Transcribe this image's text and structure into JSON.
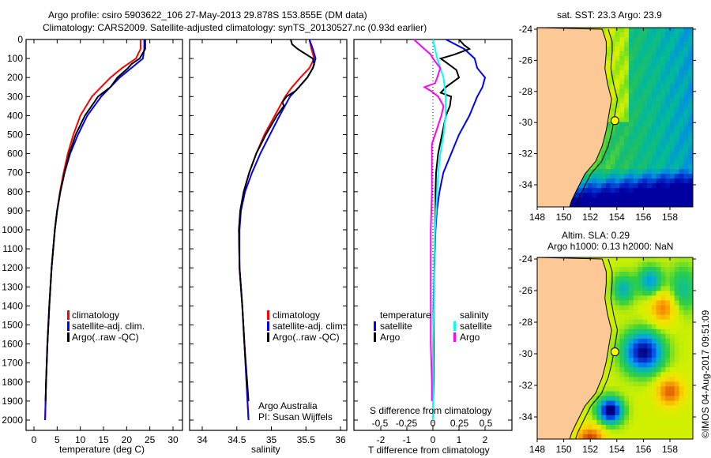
{
  "title": {
    "line1": "Argo profile: csiro 5903622_106 27-May-2013 29.878S 153.855E (DM data)",
    "line2": "Climatology: CARS2009. Satellite-adjusted climatology: synTS_20130527.nc (0.93d earlier)"
  },
  "colors": {
    "climatology": "#ff0000",
    "satellite": "#0000ff",
    "argo": "#000000",
    "sal_satellite": "#00ffff",
    "sal_argo": "#ff00ff",
    "land": "#fbc896"
  },
  "chart_data": [
    {
      "type": "line",
      "panel": "temperature",
      "xlabel": "temperature (deg C)",
      "ylabel": "",
      "xlim": [
        -1.7,
        32
      ],
      "ylim": [
        2050,
        0
      ],
      "xticks": [
        0,
        5,
        10,
        15,
        20,
        25,
        30
      ],
      "yticks": [
        0,
        100,
        200,
        300,
        400,
        500,
        600,
        700,
        800,
        900,
        1000,
        1100,
        1200,
        1300,
        1400,
        1500,
        1600,
        1700,
        1800,
        1900,
        2000
      ],
      "legend": [
        "climatology",
        "satellite-adj. clim.",
        "Argo(..raw -QC)"
      ],
      "legend_placement": "lower-middle",
      "series": [
        {
          "name": "climatology",
          "color": "#ff0000",
          "depth": [
            0,
            50,
            100,
            150,
            200,
            300,
            400,
            500,
            600,
            700,
            800,
            900,
            1000,
            1200,
            1400,
            1600,
            1800,
            2000
          ],
          "values": [
            23.0,
            23.0,
            22.0,
            19.0,
            16.5,
            12.5,
            10.0,
            8.5,
            7.3,
            6.4,
            5.6,
            5.0,
            4.5,
            3.8,
            3.3,
            2.9,
            2.6,
            2.4
          ]
        },
        {
          "name": "satellite-adj. clim.",
          "color": "#0000ff",
          "depth": [
            0,
            50,
            100,
            150,
            200,
            300,
            400,
            500,
            600,
            700,
            800,
            900,
            1000,
            1200,
            1400,
            1600,
            1800,
            2000
          ],
          "values": [
            23.8,
            23.8,
            23.5,
            21.0,
            18.5,
            14.5,
            11.5,
            9.5,
            7.8,
            6.6,
            5.7,
            5.0,
            4.5,
            3.8,
            3.3,
            2.9,
            2.6,
            2.4
          ]
        },
        {
          "name": "Argo",
          "color": "#000000",
          "depth": [
            0,
            50,
            100,
            130,
            150,
            200,
            250,
            300,
            330,
            400,
            500,
            600,
            700,
            800,
            900,
            1000,
            1200,
            1400,
            1600,
            1800,
            1900
          ],
          "values": [
            24.0,
            24.0,
            22.8,
            21.0,
            20.3,
            18.0,
            16.5,
            13.8,
            13.0,
            11.0,
            9.0,
            7.6,
            6.6,
            5.7,
            5.0,
            4.5,
            3.8,
            3.3,
            2.9,
            2.6,
            2.5
          ]
        }
      ]
    },
    {
      "type": "line",
      "panel": "salinity",
      "xlabel": "salinity",
      "xlim": [
        33.8,
        36.1
      ],
      "ylim": [
        2050,
        0
      ],
      "xticks": [
        34,
        34.5,
        35,
        35.5,
        36
      ],
      "legend": [
        "climatology",
        "satellite-adj. clim.",
        "Argo(..raw -QC)"
      ],
      "legend_placement": "lower-right",
      "annotation": [
        "Argo Australia",
        "PI: Susan Wijffels"
      ],
      "series": [
        {
          "name": "climatology",
          "color": "#ff0000",
          "depth": [
            0,
            50,
            100,
            150,
            200,
            250,
            300,
            400,
            500,
            600,
            700,
            800,
            900,
            1000,
            1200,
            1400,
            1600,
            1800,
            2000
          ],
          "values": [
            35.55,
            35.58,
            35.62,
            35.55,
            35.42,
            35.3,
            35.2,
            35.05,
            34.9,
            34.78,
            34.68,
            34.6,
            34.55,
            34.53,
            34.54,
            34.58,
            34.61,
            34.64,
            34.67
          ]
        },
        {
          "name": "satellite-adj. clim.",
          "color": "#0000ff",
          "depth": [
            0,
            50,
            100,
            150,
            200,
            250,
            300,
            400,
            500,
            600,
            700,
            800,
            900,
            1000,
            1200,
            1400,
            1600,
            1800,
            2000
          ],
          "values": [
            35.55,
            35.6,
            35.64,
            35.6,
            35.52,
            35.4,
            35.27,
            35.12,
            34.98,
            34.84,
            34.72,
            34.62,
            34.56,
            34.54,
            34.54,
            34.58,
            34.61,
            34.64,
            34.67
          ]
        },
        {
          "name": "Argo",
          "color": "#000000",
          "depth": [
            0,
            25,
            50,
            100,
            130,
            150,
            200,
            270,
            300,
            330,
            350,
            400,
            500,
            600,
            700,
            800,
            900,
            1000,
            1200,
            1400,
            1600,
            1800,
            1900
          ],
          "values": [
            35.28,
            35.3,
            35.38,
            35.6,
            35.62,
            35.6,
            35.52,
            35.35,
            35.22,
            35.16,
            35.18,
            35.08,
            34.92,
            34.78,
            34.68,
            34.6,
            34.55,
            34.53,
            34.54,
            34.58,
            34.61,
            34.65,
            34.67
          ]
        }
      ]
    },
    {
      "type": "line",
      "panel": "difference",
      "xlabel": "T difference from climatology",
      "xlabel_top": "S difference from climatology",
      "xlim": [
        -3,
        3
      ],
      "ylim": [
        2050,
        0
      ],
      "xticks": [
        -2,
        -1,
        0,
        1,
        2
      ],
      "xticks_top": [
        -0.5,
        -0.25,
        0,
        0.25,
        0.5
      ],
      "legend": {
        "temperature": [
          "satellite",
          "Argo"
        ],
        "salinity": [
          "satellite",
          "Argo"
        ]
      },
      "legend_placement": "lower-middle",
      "series": [
        {
          "name": "T satellite",
          "color": "#0000ff",
          "depth": [
            0,
            50,
            100,
            150,
            200,
            250,
            300,
            400,
            500,
            600,
            700,
            800,
            900,
            1000,
            1200,
            1400,
            1600,
            1800,
            2000
          ],
          "values": [
            0.5,
            1.2,
            1.6,
            1.7,
            2.0,
            1.9,
            1.7,
            1.4,
            1.0,
            0.7,
            0.4,
            0.25,
            0.15,
            0.1,
            0.05,
            0.02,
            0.02,
            0.01,
            0.0
          ]
        },
        {
          "name": "T Argo",
          "color": "#000000",
          "depth": [
            0,
            30,
            50,
            80,
            100,
            130,
            160,
            200,
            250,
            280,
            300,
            350,
            400,
            500,
            600,
            700,
            800,
            900,
            1000,
            1200,
            1400,
            1600,
            1800,
            1900
          ],
          "values": [
            1.0,
            1.2,
            1.4,
            0.8,
            0.3,
            0.6,
            0.9,
            1.0,
            0.5,
            0.3,
            0.7,
            0.65,
            0.5,
            0.35,
            0.2,
            0.12,
            0.1,
            0.1,
            0.08,
            0.05,
            0.04,
            0.03,
            0.02,
            0.0
          ]
        },
        {
          "name": "S satellite",
          "color": "#00ffff",
          "depth": [
            0,
            100,
            200,
            300,
            400,
            500,
            600,
            700,
            800,
            900,
            1000,
            1200,
            1400,
            1600,
            1800,
            2000
          ],
          "values": [
            0.0,
            0.04,
            0.1,
            0.12,
            0.12,
            0.1,
            0.07,
            0.05,
            0.04,
            0.03,
            0.02,
            0.01,
            0.01,
            0.0,
            0.0,
            0.0
          ]
        },
        {
          "name": "S Argo",
          "color": "#ff00ff",
          "depth": [
            0,
            30,
            60,
            80,
            100,
            130,
            150,
            200,
            230,
            250,
            270,
            300,
            350,
            400,
            500,
            550,
            600,
            700,
            800,
            1000,
            1200,
            1400,
            1600,
            1800,
            1900
          ],
          "values": [
            -0.18,
            -0.12,
            -0.06,
            -0.02,
            0.0,
            0.04,
            0.07,
            0.04,
            0.02,
            -0.08,
            -0.02,
            0.05,
            0.1,
            0.08,
            0.02,
            -0.01,
            -0.01,
            -0.01,
            -0.01,
            -0.02,
            -0.02,
            -0.02,
            -0.02,
            -0.01,
            -0.01
          ]
        }
      ]
    },
    {
      "type": "heatmap",
      "panel": "sst-map",
      "title": "sat. SST: 23.3 Argo: 23.9",
      "xlim": [
        148,
        159.8
      ],
      "ylim": [
        -35.8,
        -24
      ],
      "xticks": [
        148,
        150,
        152,
        154,
        156,
        158
      ],
      "yticks": [
        -24,
        -26,
        -28,
        -30,
        -32,
        -34
      ],
      "marker": {
        "lon": 153.855,
        "lat": -29.878
      }
    },
    {
      "type": "heatmap",
      "panel": "sla-map",
      "title": [
        "Altim. SLA: 0.29",
        "Argo h1000: 0.13 h2000: NaN"
      ],
      "xlim": [
        148,
        159.8
      ],
      "ylim": [
        -35.8,
        -24
      ],
      "xticks": [
        148,
        150,
        152,
        154,
        156,
        158
      ],
      "yticks": [
        -24,
        -26,
        -28,
        -30,
        -32,
        -34
      ],
      "marker": {
        "lon": 153.855,
        "lat": -29.878
      }
    }
  ],
  "labels": {
    "legend_temp": [
      "climatology",
      "satellite-adj. clim.",
      "Argo(..raw -QC)"
    ],
    "legend_sal": [
      "climatology",
      "satellite-adj. clim.",
      "Argo(..raw -QC)"
    ],
    "diff_legend": {
      "temp_header": "temperature",
      "sal_header": "salinity",
      "satellite": "satellite",
      "argo": "Argo"
    },
    "credit_line1": "Argo Australia",
    "credit_line2": "PI: Susan Wijffels",
    "s_diff_label": "S difference from climatology",
    "t_diff_label": "T difference from climatology",
    "temp_xlabel": "temperature (deg C)",
    "sal_xlabel": "salinity",
    "sst_title": "sat. SST: 23.3 Argo: 23.9",
    "sla_title1": "Altim. SLA: 0.29",
    "sla_title2": "Argo h1000: 0.13 h2000: NaN",
    "copyright": "©IMOS 04-Aug-2017 09:51:09"
  }
}
